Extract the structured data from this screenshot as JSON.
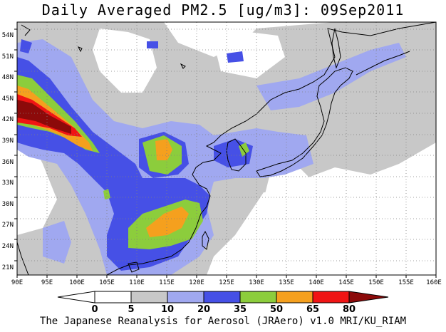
{
  "title": "Daily Averaged PM2.5 [ug/m3]: 09Sep2011",
  "credit": "The Japanese Reanalysis for Aerosol (JRAero) v1.0 MRI/KU_RIAM",
  "map": {
    "lon_range": [
      90,
      160
    ],
    "lat_range": [
      19.5,
      55.5
    ],
    "lon_ticks": [
      "90E",
      "95E",
      "100E",
      "105E",
      "110E",
      "115E",
      "120E",
      "125E",
      "130E",
      "135E",
      "140E",
      "145E",
      "150E",
      "155E",
      "160E"
    ],
    "lat_ticks": [
      "21N",
      "24N",
      "27N",
      "30N",
      "33N",
      "36N",
      "39N",
      "42N",
      "45N",
      "48N",
      "51N",
      "54N"
    ],
    "grid": "dotted",
    "ocean_color": "#ffffff",
    "coastline_color": "#000000"
  },
  "colorbar": {
    "labels": [
      "0",
      "5",
      "10",
      "20",
      "35",
      "50",
      "65",
      "80"
    ],
    "colors": [
      "#ffffff",
      "#c8c8c8",
      "#a0a8f0",
      "#4650e6",
      "#8ccd3c",
      "#f5a01e",
      "#f01414",
      "#8c0a0a"
    ]
  }
}
